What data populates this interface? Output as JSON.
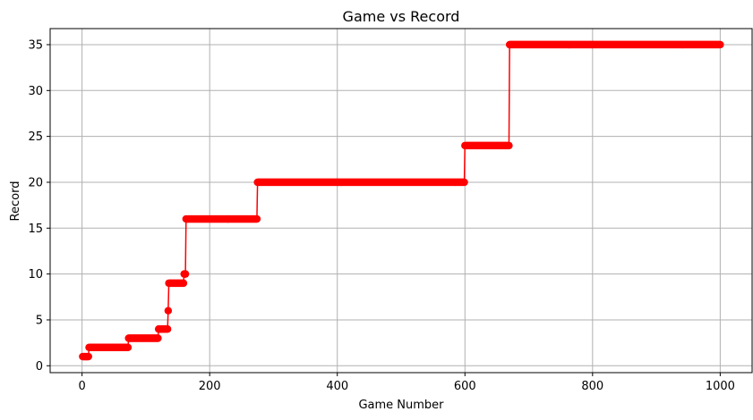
{
  "chart_data": {
    "type": "line",
    "title": "Game vs Record",
    "xlabel": "Game Number",
    "ylabel": "Record",
    "xlim": [
      -50,
      1050
    ],
    "ylim": [
      -0.75,
      36.75
    ],
    "xticks": [
      0,
      200,
      400,
      600,
      800,
      1000
    ],
    "yticks": [
      0,
      5,
      10,
      15,
      20,
      25,
      30,
      35
    ],
    "grid": true,
    "marker": "circle",
    "color": "#ff0000",
    "steps": [
      {
        "from": 1,
        "to": 10,
        "value": 1
      },
      {
        "from": 11,
        "to": 72,
        "value": 2
      },
      {
        "from": 73,
        "to": 119,
        "value": 3
      },
      {
        "from": 120,
        "to": 134,
        "value": 4
      },
      {
        "from": 135,
        "to": 135,
        "value": 6
      },
      {
        "from": 136,
        "to": 159,
        "value": 9
      },
      {
        "from": 160,
        "to": 162,
        "value": 10
      },
      {
        "from": 163,
        "to": 274,
        "value": 16
      },
      {
        "from": 275,
        "to": 599,
        "value": 20
      },
      {
        "from": 600,
        "to": 669,
        "value": 24
      },
      {
        "from": 670,
        "to": 1000,
        "value": 35
      }
    ]
  }
}
